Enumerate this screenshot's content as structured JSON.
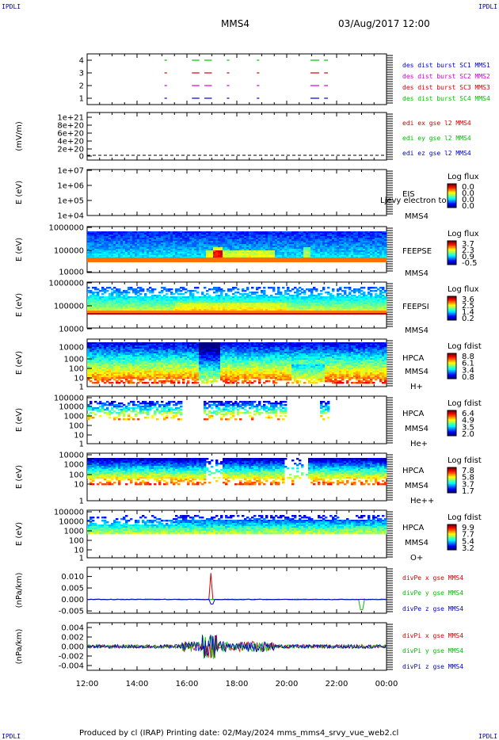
{
  "header": {
    "corner_label": "IPDLI",
    "spacecraft": "MMS4",
    "datetime": "03/Aug/2017 12:00"
  },
  "footer": {
    "produced_by": "Produced by  cl (IRAP)    Printing date: 02/May/2024    mms_mms4_srvy_vue_web2.cl"
  },
  "colors": {
    "red": "#d40000",
    "green": "#00c000",
    "blue": "#0000d0",
    "magenta": "#d000d0"
  },
  "chart_data": [
    {
      "type": "line",
      "panel": "burst-availability",
      "ytick_labels": [
        "4",
        "3",
        "2",
        "1"
      ],
      "series": [
        {
          "name": "des dist burst SC1 MMS1",
          "color": "#0000d0",
          "level": 4
        },
        {
          "name": "des dist burst SC2 MMS2",
          "color": "#d000d0",
          "level": 3
        },
        {
          "name": "des dist burst SC3 MMS3",
          "color": "#d40000",
          "level": 2
        },
        {
          "name": "des dist burst SC4 MMS4",
          "color": "#00c000",
          "level": 1
        }
      ],
      "burst_intervals_hours": [
        [
          15.1,
          15.2
        ],
        [
          16.2,
          16.5
        ],
        [
          16.7,
          17.0
        ],
        [
          17.6,
          17.7
        ],
        [
          18.8,
          18.9
        ],
        [
          20.95,
          21.3
        ],
        [
          21.5,
          21.65
        ]
      ]
    },
    {
      "type": "line",
      "panel": "edi-field",
      "ylabel": "(mV/m)",
      "ytick_labels": [
        "1e+21",
        "8e+20",
        "6e+20",
        "4e+20",
        "2e+20",
        "0"
      ],
      "series": [
        {
          "name": "edi ex gse l2 MMS4",
          "color": "#d40000"
        },
        {
          "name": "edi ey gse l2 MMS4",
          "color": "#00c000"
        },
        {
          "name": "edi ez gse l2 MMS4",
          "color": "#0000d0"
        }
      ]
    },
    {
      "type": "heatmap",
      "panel": "eis",
      "ylabel": "E (eV)",
      "ytick_labels": [
        "1e+07",
        "1e+06",
        "1e+05",
        "1e+04"
      ],
      "right_label_1": "EIS",
      "right_label_2": "MMS4",
      "overlay_note": "Ljevy electron to",
      "colorbar_title": "Log flux",
      "colorbar_ticks": [
        "0.0",
        "0.0",
        "0.0",
        "0.0"
      ]
    },
    {
      "type": "heatmap",
      "panel": "feepse",
      "ylabel": "E (eV)",
      "ytick_labels": [
        "1000000",
        "100000",
        "10000"
      ],
      "right_label_1": "FEEPSE",
      "right_label_2": "MMS4",
      "colorbar_title": "Log flux",
      "colorbar_ticks": [
        "3.7",
        "2.3",
        "0.9",
        "-0.5"
      ]
    },
    {
      "type": "heatmap",
      "panel": "feepsi",
      "ylabel": "E (eV)",
      "ytick_labels": [
        "1000000",
        "100000",
        "10000"
      ],
      "right_label_1": "FEEPSI",
      "right_label_2": "MMS4",
      "colorbar_title": "Log flux",
      "colorbar_ticks": [
        "3.6",
        "2.5",
        "1.4",
        "0.2"
      ]
    },
    {
      "type": "heatmap",
      "panel": "hpca-h",
      "ylabel": "E (eV)",
      "ytick_labels": [
        "10000",
        "1000",
        "100",
        "10",
        "1"
      ],
      "right_label_1": "HPCA",
      "right_label_2": "MMS4",
      "species": "H+",
      "colorbar_title": "Log fdist",
      "colorbar_ticks": [
        "8.8",
        "6.1",
        "3.4",
        "0.8"
      ]
    },
    {
      "type": "heatmap",
      "panel": "hpca-he",
      "ylabel": "E (eV)",
      "ytick_labels": [
        "100000",
        "10000",
        "1000",
        "100",
        "10",
        "1"
      ],
      "right_label_1": "HPCA",
      "right_label_2": "MMS4",
      "species": "He+",
      "colorbar_title": "Log fdist",
      "colorbar_ticks": [
        "6.4",
        "4.9",
        "3.5",
        "2.0"
      ]
    },
    {
      "type": "heatmap",
      "panel": "hpca-hepp",
      "ylabel": "E (eV)",
      "ytick_labels": [
        "10000",
        "1000",
        "100",
        "10",
        "1"
      ],
      "right_label_1": "HPCA",
      "right_label_2": "MMS4",
      "species": "He++",
      "colorbar_title": "Log fdist",
      "colorbar_ticks": [
        "7.8",
        "5.8",
        "3.7",
        "1.7"
      ]
    },
    {
      "type": "heatmap",
      "panel": "hpca-o",
      "ylabel": "E (eV)",
      "ytick_labels": [
        "100000",
        "10000",
        "1000",
        "100",
        "10",
        "1"
      ],
      "right_label_1": "HPCA",
      "right_label_2": "MMS4",
      "species": "O+",
      "colorbar_title": "Log fdist",
      "colorbar_ticks": [
        "9.9",
        "7.7",
        "5.4",
        "3.2"
      ]
    },
    {
      "type": "line",
      "panel": "divpe",
      "ylabel": "(nPa/km)",
      "ytick_labels": [
        "0.010",
        "0.005",
        "0.000",
        "-0.005"
      ],
      "ylim": [
        -0.006,
        0.014
      ],
      "series": [
        {
          "name": "divPe x gse MMS4",
          "color": "#d40000"
        },
        {
          "name": "divPe y gse MMS4",
          "color": "#00c000"
        },
        {
          "name": "divPe z gse MMS4",
          "color": "#0000d0"
        }
      ]
    },
    {
      "type": "line",
      "panel": "divpi",
      "ylabel": "(nPa/km)",
      "ytick_labels": [
        "0.004",
        "0.002",
        "0.000",
        "-0.002",
        "-0.004"
      ],
      "ylim": [
        -0.005,
        0.005
      ],
      "series": [
        {
          "name": "divPi x gse MMS4",
          "color": "#d40000"
        },
        {
          "name": "divPi y gse MMS4",
          "color": "#00c000"
        },
        {
          "name": "divPi z gse MMS4",
          "color": "#0000d0"
        }
      ]
    }
  ],
  "time_axis": {
    "tick_labels": [
      "12:00",
      "14:00",
      "16:00",
      "18:00",
      "20:00",
      "22:00",
      "00:00"
    ]
  }
}
